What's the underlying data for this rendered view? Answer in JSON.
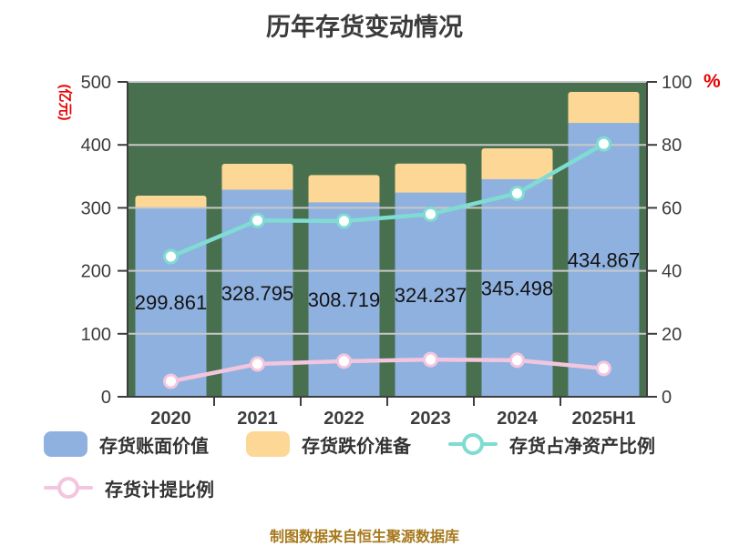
{
  "title": "历年存货变动情况",
  "footer": "制图数据来自恒生聚源数据库",
  "colors": {
    "plot_bg": "#48704f",
    "grid": "#c8c8c8",
    "axis": "#3d3d3d",
    "tick_text": "#3d3d3d",
    "data_label": "#141414",
    "axis_title_red": "#e60000",
    "footer_gold": "#a6791c",
    "title_color": "#3b3b3b",
    "legend_text": "#333333"
  },
  "chart_data": {
    "type": "bar",
    "subtype": "stacked-bar-with-lines",
    "title": "历年存货变动情况",
    "categories": [
      "2020",
      "2021",
      "2022",
      "2023",
      "2024",
      "2025H1"
    ],
    "left_axis": {
      "title": "(亿元)",
      "min": 0,
      "max": 500,
      "tick_labels": [
        "0",
        "100",
        "200",
        "300",
        "400",
        "500"
      ]
    },
    "right_axis": {
      "title": "%",
      "min": 0,
      "max": 100,
      "tick_labels": [
        "0",
        "20",
        "40",
        "60",
        "80",
        "100"
      ]
    },
    "grid": true,
    "legend_position": "bottom",
    "series": [
      {
        "name": "存货账面价值",
        "type": "bar",
        "stack": true,
        "axis": "left",
        "color": "#8fb1e0",
        "values": [
          299.861,
          328.795,
          308.719,
          324.237,
          345.498,
          434.867
        ],
        "data_labels": [
          "299.861",
          "328.795",
          "308.719",
          "324.237",
          "345.498",
          "434.867"
        ]
      },
      {
        "name": "存货跌价准备",
        "type": "bar",
        "stack": true,
        "axis": "left",
        "color": "#fdd796",
        "estimated": true,
        "values": [
          19.5,
          41.2,
          43.4,
          46.0,
          49.0,
          49.2
        ]
      },
      {
        "name": "存货占净资产比例",
        "type": "line",
        "axis": "right",
        "color": "#7fdcd2",
        "estimated": true,
        "values": [
          44.5,
          56.0,
          55.8,
          58.0,
          64.6,
          80.3
        ]
      },
      {
        "name": "存货计提比例",
        "type": "line",
        "axis": "right",
        "color": "#f3c5de",
        "estimated": true,
        "values": [
          4.9,
          10.4,
          11.3,
          11.8,
          11.6,
          9.0
        ]
      }
    ]
  }
}
